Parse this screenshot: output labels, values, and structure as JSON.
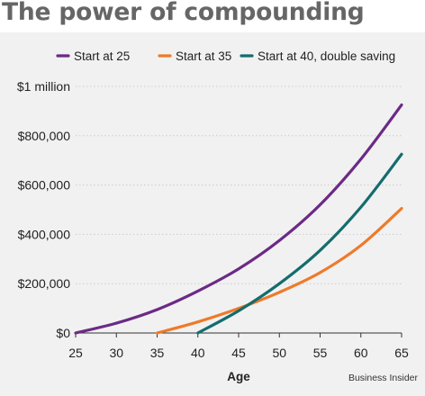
{
  "title": "The power of compounding",
  "source": "Business Insider",
  "chart_data": {
    "type": "line",
    "xlabel": "Age",
    "ylabel": "",
    "xlim": [
      25,
      65
    ],
    "ylim": [
      0,
      1000000
    ],
    "x_ticks": [
      25,
      30,
      35,
      40,
      45,
      50,
      55,
      60,
      65
    ],
    "y_ticks": [
      {
        "value": 0,
        "label": "$0"
      },
      {
        "value": 200000,
        "label": "$200,000"
      },
      {
        "value": 400000,
        "label": "$400,000"
      },
      {
        "value": 600000,
        "label": "$600,000"
      },
      {
        "value": 800000,
        "label": "$800,000"
      },
      {
        "value": 1000000,
        "label": "$1 million"
      }
    ],
    "grid": "horizontal",
    "legend_position": "top",
    "series": [
      {
        "name": "Start at 25",
        "color": "#6b2a86",
        "x": [
          25,
          30,
          35,
          40,
          45,
          50,
          55,
          60,
          65
        ],
        "y": [
          0,
          40000,
          95000,
          170000,
          260000,
          375000,
          520000,
          705000,
          925000
        ]
      },
      {
        "name": "Start at 35",
        "color": "#ee7a2a",
        "x": [
          35,
          40,
          45,
          50,
          55,
          60,
          65
        ],
        "y": [
          0,
          45000,
          100000,
          165000,
          245000,
          355000,
          505000
        ]
      },
      {
        "name": "Start at 40, double saving",
        "color": "#146c6e",
        "x": [
          40,
          45,
          50,
          55,
          60,
          65
        ],
        "y": [
          0,
          90000,
          200000,
          335000,
          510000,
          725000
        ]
      }
    ]
  }
}
